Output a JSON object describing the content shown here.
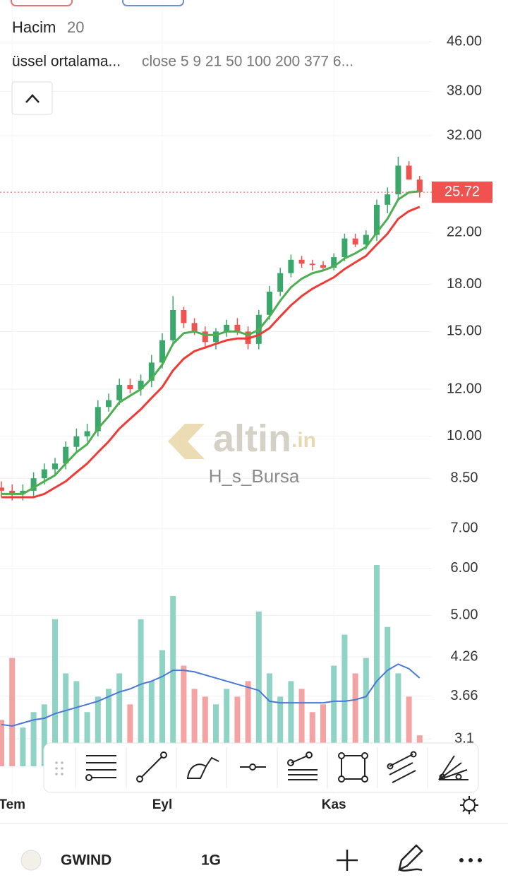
{
  "header": {
    "indicator": "Hacim",
    "period": "20",
    "ma_name": "üssel ortalama...",
    "ma_params": "close 5 9 21 50 100 200 377 6..."
  },
  "watermark": {
    "brand": "altin",
    "suffix": ".in",
    "author": "H_s_Bursa"
  },
  "bottom_bar": {
    "symbol": "GWIND",
    "interval": "1G"
  },
  "chart_data": {
    "type": "candlestick",
    "categories": [
      null,
      "Tem",
      null,
      null,
      null,
      null,
      null,
      null,
      null,
      null,
      null,
      null,
      null,
      null,
      null,
      "Eyl",
      null,
      null,
      null,
      null,
      null,
      null,
      null,
      null,
      null,
      null,
      null,
      null,
      null,
      null,
      null,
      "Kas",
      null,
      null,
      null,
      null,
      null,
      null,
      null,
      null
    ],
    "open": [
      8.2,
      8.1,
      8.0,
      8.1,
      8.5,
      8.8,
      9.0,
      9.6,
      10.0,
      10.2,
      11.2,
      11.5,
      12.2,
      12.0,
      12.4,
      13.3,
      14.5,
      16.3,
      15.5,
      15.0,
      14.4,
      15.0,
      15.4,
      15.0,
      14.3,
      16.0,
      17.5,
      18.8,
      19.8,
      19.5,
      19.4,
      19.2,
      20.0,
      21.5,
      21.0,
      21.8,
      24.5,
      25.5,
      28.5,
      27.0
    ],
    "high": [
      8.4,
      8.3,
      8.3,
      8.7,
      9.0,
      9.2,
      9.8,
      10.3,
      10.5,
      11.5,
      11.8,
      12.5,
      12.5,
      12.7,
      13.7,
      14.9,
      17.2,
      16.5,
      15.8,
      15.3,
      15.2,
      15.7,
      15.8,
      15.3,
      16.3,
      17.9,
      19.2,
      20.2,
      20.1,
      19.8,
      19.7,
      20.3,
      21.9,
      21.9,
      22.2,
      25.0,
      26.2,
      29.5,
      29.0,
      27.4
    ],
    "low": [
      7.9,
      7.8,
      7.8,
      7.9,
      8.3,
      8.6,
      8.8,
      9.4,
      9.8,
      10.0,
      11.0,
      11.3,
      11.8,
      11.7,
      12.1,
      13.0,
      14.2,
      15.2,
      14.8,
      14.1,
      14.0,
      14.7,
      14.8,
      14.0,
      14.0,
      15.7,
      17.2,
      18.5,
      19.2,
      19.0,
      19.0,
      19.0,
      19.7,
      20.8,
      20.6,
      21.3,
      23.7,
      24.9,
      27.0,
      25.2
    ],
    "close": [
      8.1,
      8.0,
      8.1,
      8.5,
      8.8,
      9.0,
      9.6,
      10.0,
      10.2,
      11.2,
      11.5,
      12.2,
      12.0,
      12.4,
      13.3,
      14.5,
      16.3,
      15.5,
      15.0,
      14.4,
      15.0,
      15.4,
      15.0,
      14.3,
      16.0,
      17.5,
      18.8,
      19.8,
      19.5,
      19.4,
      19.2,
      20.0,
      21.5,
      21.0,
      21.8,
      24.5,
      25.5,
      28.5,
      27.0,
      25.72
    ],
    "up_color": "#3aa86a",
    "down_color": "#ef5350",
    "series": [
      {
        "color": "#4caf50",
        "values": [
          8.0,
          8.0,
          8.0,
          8.2,
          8.4,
          8.6,
          9.0,
          9.4,
          9.7,
          10.3,
          10.8,
          11.4,
          11.7,
          12.0,
          12.5,
          13.2,
          14.3,
          14.9,
          15.0,
          14.8,
          14.8,
          15.0,
          15.0,
          14.8,
          15.1,
          15.9,
          16.9,
          17.8,
          18.4,
          18.8,
          19.0,
          19.3,
          19.9,
          20.3,
          20.8,
          22.0,
          23.2,
          25.0,
          25.7,
          25.8
        ]
      },
      {
        "color": "#ef3b36",
        "values": [
          7.9,
          7.9,
          7.9,
          7.9,
          8.0,
          8.2,
          8.4,
          8.7,
          9.0,
          9.4,
          9.8,
          10.3,
          10.7,
          11.1,
          11.6,
          12.1,
          12.9,
          13.5,
          13.9,
          14.1,
          14.3,
          14.5,
          14.6,
          14.6,
          14.8,
          15.2,
          15.9,
          16.6,
          17.2,
          17.7,
          18.1,
          18.5,
          19.1,
          19.6,
          20.1,
          21.0,
          21.9,
          23.2,
          23.9,
          24.3
        ]
      }
    ],
    "volume": {
      "values": [
        30,
        70,
        25,
        35,
        40,
        95,
        60,
        55,
        35,
        45,
        50,
        60,
        40,
        95,
        55,
        75,
        110,
        65,
        50,
        45,
        40,
        50,
        45,
        55,
        100,
        60,
        45,
        55,
        50,
        35,
        40,
        65,
        85,
        60,
        70,
        130,
        90,
        60,
        45,
        20
      ],
      "up_color": "#8fd3c4",
      "down_color": "#f4a3a3",
      "ma": {
        "color": "#4a78d8",
        "values": [
          27,
          26,
          28,
          30,
          31,
          34,
          36,
          38,
          40,
          42,
          45,
          48,
          50,
          53,
          55,
          58,
          62,
          62,
          61,
          59,
          57,
          55,
          53,
          51,
          49,
          42,
          41,
          41,
          41,
          41,
          41,
          42,
          42,
          43,
          45,
          55,
          62,
          66,
          63,
          57
        ]
      }
    },
    "ylim": [
      2.5,
      54.1
    ],
    "yticks": [
      {
        "value": 46,
        "label": "46.00"
      },
      {
        "value": 38,
        "label": "38.00"
      },
      {
        "value": 32,
        "label": "32.00"
      },
      {
        "value": 22,
        "label": "22.00"
      },
      {
        "value": 18,
        "label": "18.00"
      },
      {
        "value": 15,
        "label": "15.00"
      },
      {
        "value": 12,
        "label": "12.00"
      },
      {
        "value": 10,
        "label": "10.00"
      },
      {
        "value": 8.5,
        "label": "8.50"
      },
      {
        "value": 7,
        "label": "7.00"
      },
      {
        "value": 6,
        "label": "6.00"
      },
      {
        "value": 5,
        "label": "5.00"
      },
      4.26,
      3.66,
      3.1
    ],
    "log_scale": true,
    "grid": true,
    "last_price": 25.72
  }
}
